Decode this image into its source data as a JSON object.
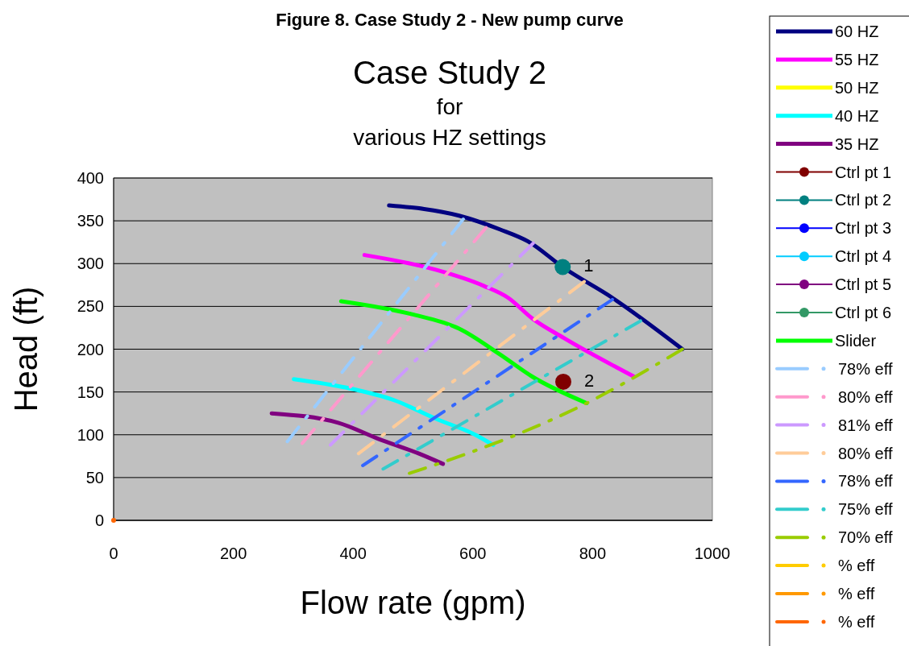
{
  "chart_data": {
    "type": "line",
    "title": "Case Study 2",
    "subtitle": "for\nvarious HZ settings",
    "xlabel": "Flow rate (gpm)",
    "ylabel": "Head (ft)",
    "annotations": [
      "Figure 8.  Case Study 2 - New pump curve",
      {
        "text": "1",
        "x": 750,
        "y": 296
      },
      {
        "text": "2",
        "x": 751,
        "y": 162
      }
    ],
    "xlim": [
      0,
      1000
    ],
    "xticks": [
      0,
      200,
      400,
      600,
      800,
      1000
    ],
    "ylim": [
      0,
      400
    ],
    "yticks": [
      0,
      50,
      100,
      150,
      200,
      250,
      300,
      350,
      400
    ],
    "grid": "y",
    "legend": "right",
    "line_style": "solid",
    "marker": "none",
    "series": [
      {
        "name": "60 HZ",
        "color": "#000080",
        "x": [
          460,
          577,
          645,
          692,
          752,
          833,
          950
        ],
        "values": [
          368,
          356,
          340,
          326,
          295,
          260,
          200
        ]
      },
      {
        "name": "55 HZ",
        "color": "#ff00ff",
        "x": [
          419,
          537,
          618,
          659,
          699,
          752,
          869
        ],
        "values": [
          310,
          293,
          274,
          260,
          236,
          213,
          168
        ]
      },
      {
        "name": "50 HZ",
        "color": "#ffff00"
      },
      {
        "name": "40 HZ",
        "color": "#00ffff",
        "x": [
          301,
          389,
          470,
          537,
          604,
          634
        ],
        "values": [
          165,
          155,
          140,
          119,
          100,
          88
        ]
      },
      {
        "name": "35 HZ",
        "color": "#800080",
        "x": [
          264,
          375,
          443,
          510,
          550
        ],
        "values": [
          125,
          114,
          95,
          78,
          66
        ]
      },
      {
        "name": "Ctrl pt 1",
        "color": "#800000",
        "marker": "circle",
        "x": [
          751
        ],
        "values": [
          162
        ]
      },
      {
        "name": "Ctrl pt 2",
        "color": "#008080",
        "marker": "circle",
        "x": [
          750
        ],
        "values": [
          296
        ]
      },
      {
        "name": "Ctrl pt 3",
        "color": "#0000ff",
        "marker": "circle"
      },
      {
        "name": "Ctrl pt 4",
        "color": "#00ccff",
        "marker": "circle"
      },
      {
        "name": "Ctrl pt 5",
        "color": "#800080",
        "marker": "circle"
      },
      {
        "name": "Ctrl pt 6",
        "color": "#339966",
        "marker": "circle"
      },
      {
        "name": "Slider",
        "color": "#00ff00",
        "x": [
          380,
          497,
          577,
          645,
          699,
          790
        ],
        "values": [
          256,
          241,
          224,
          194,
          168,
          137
        ]
      },
      {
        "name": "78% eff",
        "color": "#99ccff",
        "line_style": "dashed",
        "x": [
          584,
          290
        ],
        "values": [
          352,
          92
        ]
      },
      {
        "name": "80% eff",
        "color": "#ff99cc",
        "line_style": "dashed",
        "x": [
          622,
          315
        ],
        "values": [
          342,
          90
        ]
      },
      {
        "name": "81% eff",
        "color": "#cc99ff",
        "line_style": "dashed",
        "x": [
          701,
          362
        ],
        "values": [
          324,
          88
        ]
      },
      {
        "name": "80% eff",
        "color": "#ffcc99",
        "line_style": "dashed",
        "x": [
          786,
          409
        ],
        "values": [
          279,
          78
        ]
      },
      {
        "name": "78% eff",
        "color": "#3366ff",
        "line_style": "dashed",
        "x": [
          833,
          416
        ],
        "values": [
          258,
          64
        ]
      },
      {
        "name": "75% eff",
        "color": "#33cccc",
        "line_style": "dashed",
        "x": [
          880,
          450
        ],
        "values": [
          233,
          60
        ]
      },
      {
        "name": "70% eff",
        "color": "#99cc00",
        "line_style": "dashed",
        "x": [
          950,
          790,
          550,
          494
        ],
        "values": [
          200,
          137,
          68,
          55
        ]
      },
      {
        "name": "% eff",
        "color": "#ffcc00",
        "line_style": "dashed"
      },
      {
        "name": "% eff",
        "color": "#ff9900",
        "line_style": "dashed"
      },
      {
        "name": "% eff",
        "color": "#ff6600",
        "line_style": "dashed",
        "marker": "circle",
        "x": [
          0
        ],
        "values": [
          0
        ]
      }
    ]
  }
}
